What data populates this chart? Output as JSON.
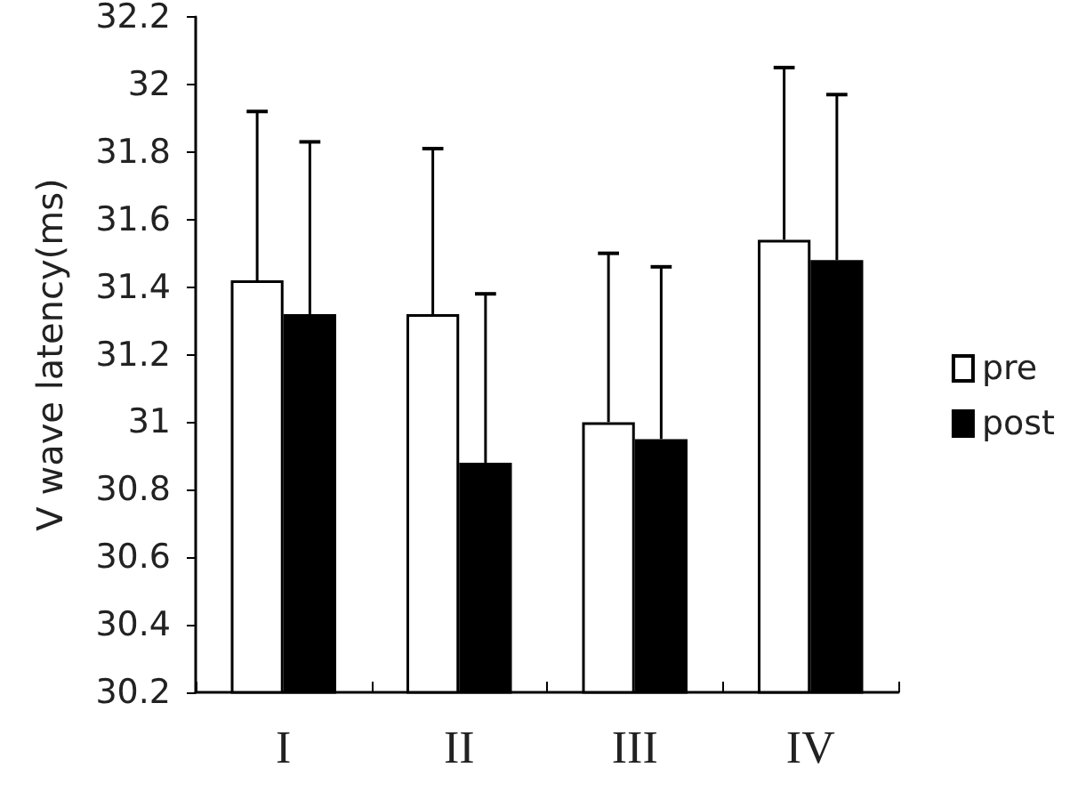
{
  "chart_data": {
    "type": "bar",
    "ylabel": "V wave latency(ms)",
    "categories": [
      "I",
      "II",
      "III",
      "IV"
    ],
    "series": [
      {
        "name": "pre",
        "color": "#ffffff",
        "values": [
          31.42,
          31.32,
          31.0,
          31.54
        ],
        "errors": [
          [
            31.42,
            31.92
          ],
          [
            31.32,
            31.81
          ],
          [
            31.0,
            31.5
          ],
          [
            31.54,
            32.05
          ]
        ]
      },
      {
        "name": "post",
        "color": "#000000",
        "values": [
          31.32,
          30.88,
          30.95,
          31.48
        ],
        "errors": [
          [
            31.32,
            31.83
          ],
          [
            30.88,
            31.38
          ],
          [
            30.95,
            31.46
          ],
          [
            31.48,
            31.97
          ]
        ]
      }
    ],
    "ylim": [
      30.2,
      32.2
    ],
    "yticks": [
      30.2,
      30.4,
      30.6,
      30.8,
      31,
      31.2,
      31.4,
      31.6,
      31.8,
      32,
      32.2
    ],
    "grid": false,
    "legend": "right"
  }
}
